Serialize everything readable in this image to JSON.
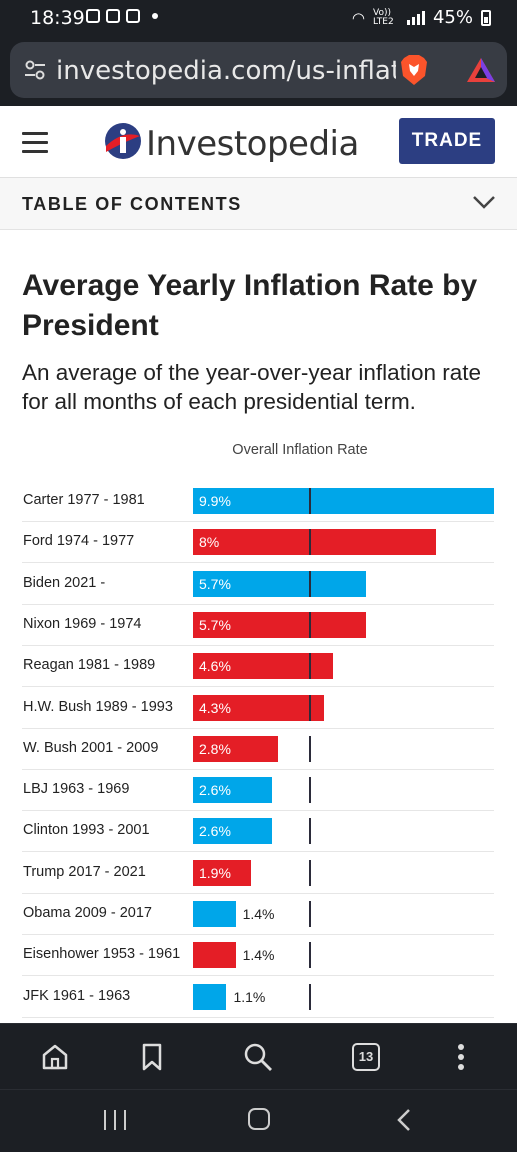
{
  "status_bar": {
    "time": "18:39",
    "network": "Vo)) LTE2",
    "battery": "45%"
  },
  "browser": {
    "url": "investopedia.com/us-inflat",
    "tab_count": "13"
  },
  "site": {
    "logo_text": "Investopedia",
    "trade_label": "TRADE",
    "toc_label": "TABLE OF CONTENTS"
  },
  "article": {
    "title": "Average Yearly Inflation Rate by President",
    "subtitle": "An average of the year-over-year inflation rate for all months of each presidential term."
  },
  "colors": {
    "democrat": "#00a6e9",
    "republican": "#e41e26",
    "brand": "#2c3e82"
  },
  "chart_data": {
    "type": "bar",
    "orientation": "horizontal",
    "reference_label": "Overall Inflation Rate",
    "reference_value": 3.8,
    "xlim": [
      0,
      10
    ],
    "bars": [
      {
        "label": "Carter 1977 - 1981",
        "value": 9.9,
        "display": "9.9%",
        "party": "democrat"
      },
      {
        "label": "Ford 1974 - 1977",
        "value": 8.0,
        "display": "8%",
        "party": "republican"
      },
      {
        "label": "Biden 2021 -",
        "value": 5.7,
        "display": "5.7%",
        "party": "democrat"
      },
      {
        "label": "Nixon 1969 - 1974",
        "value": 5.7,
        "display": "5.7%",
        "party": "republican"
      },
      {
        "label": "Reagan 1981 - 1989",
        "value": 4.6,
        "display": "4.6%",
        "party": "republican"
      },
      {
        "label": "H.W. Bush 1989 - 1993",
        "value": 4.3,
        "display": "4.3%",
        "party": "republican"
      },
      {
        "label": "W. Bush 2001 - 2009",
        "value": 2.8,
        "display": "2.8%",
        "party": "republican"
      },
      {
        "label": "LBJ 1963 - 1969",
        "value": 2.6,
        "display": "2.6%",
        "party": "democrat"
      },
      {
        "label": "Clinton 1993 - 2001",
        "value": 2.6,
        "display": "2.6%",
        "party": "democrat"
      },
      {
        "label": "Trump 2017 - 2021",
        "value": 1.9,
        "display": "1.9%",
        "party": "republican"
      },
      {
        "label": "Obama 2009 - 2017",
        "value": 1.4,
        "display": "1.4%",
        "party": "democrat"
      },
      {
        "label": "Eisenhower 1953 - 1961",
        "value": 1.4,
        "display": "1.4%",
        "party": "republican"
      },
      {
        "label": "JFK 1961 - 1963",
        "value": 1.1,
        "display": "1.1%",
        "party": "democrat"
      }
    ]
  }
}
